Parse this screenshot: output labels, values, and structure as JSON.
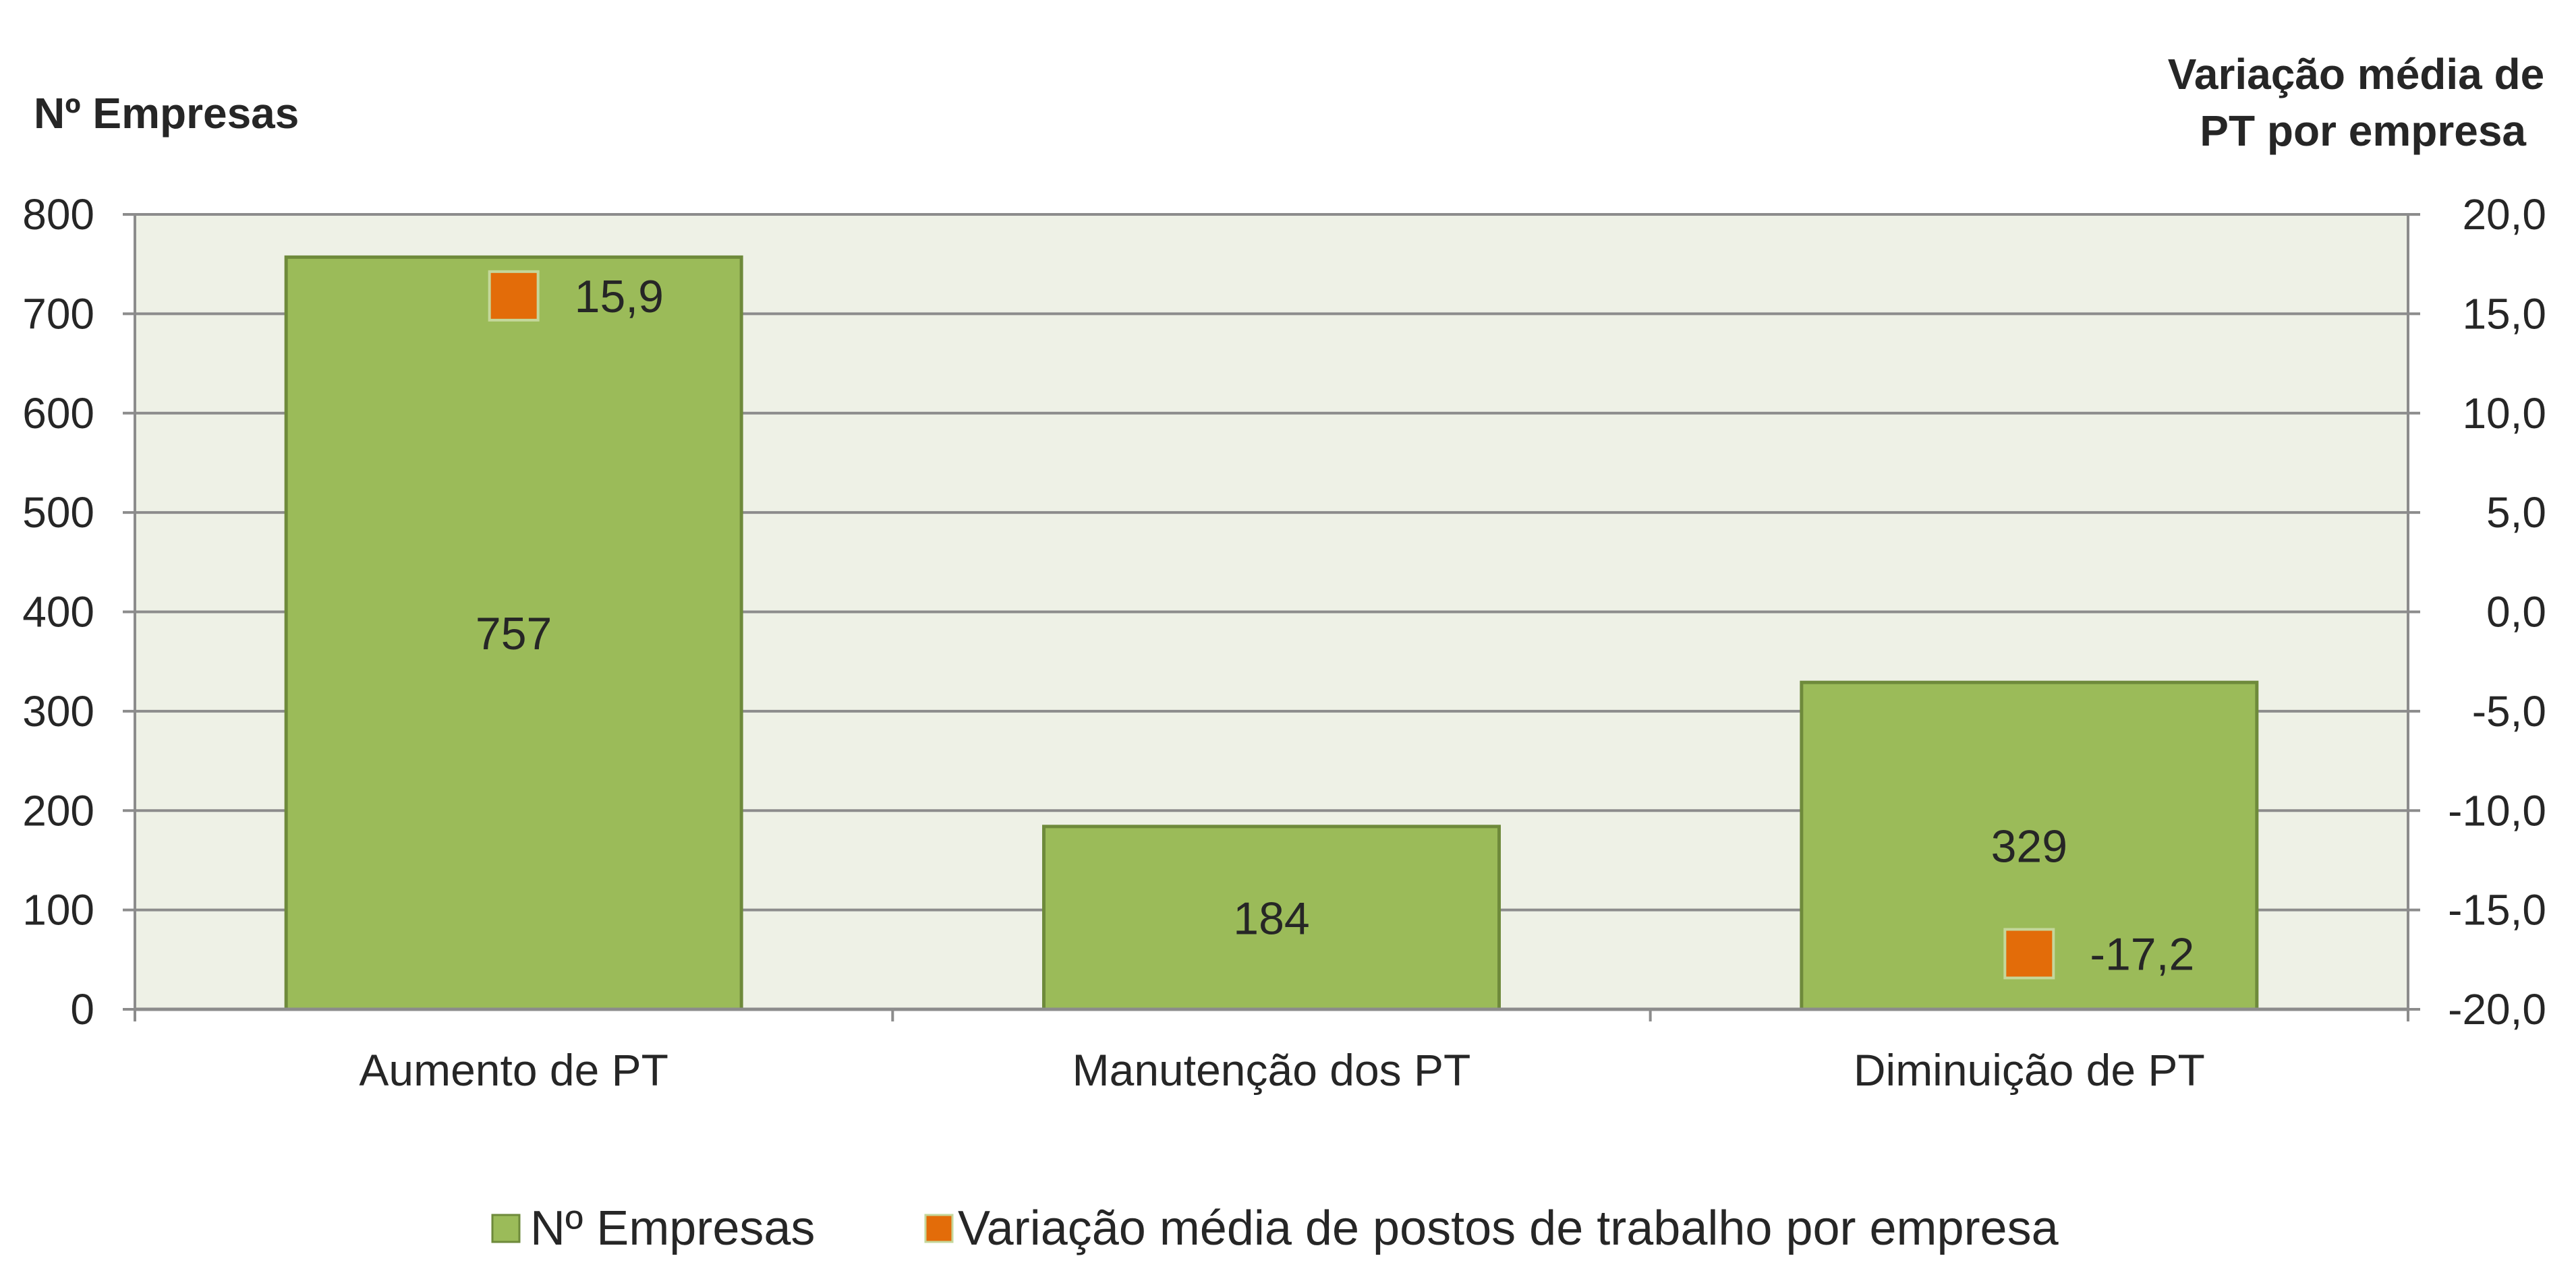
{
  "chart_data": {
    "type": "bar",
    "categories": [
      "Aumento de PT",
      "Manutenção dos PT",
      "Diminuição de PT"
    ],
    "series": [
      {
        "name": "Nº Empresas",
        "type": "bar",
        "axis": "left",
        "values": [
          757,
          184,
          329
        ],
        "color": "#9bbb59"
      },
      {
        "name": "Variação média de postos de trabalho por empresa",
        "type": "scatter",
        "axis": "right",
        "values": [
          15.9,
          null,
          -17.2
        ],
        "labels": [
          "15,9",
          "",
          "-17,2"
        ],
        "color": "#e36c09"
      }
    ],
    "bar_labels": [
      "757",
      "184",
      "329"
    ],
    "y_left": {
      "title": "Nº Empresas",
      "ylim": [
        0,
        800
      ],
      "ticks": [
        "0",
        "100",
        "200",
        "300",
        "400",
        "500",
        "600",
        "700",
        "800"
      ]
    },
    "y_right": {
      "title_lines": [
        "Variação média de",
        "PT por empresa"
      ],
      "ylim": [
        -20,
        20
      ],
      "ticks": [
        "-20,0",
        "-15,0",
        "-10,0",
        "-5,0",
        "0,0",
        "5,0",
        "10,0",
        "15,0",
        "20,0"
      ]
    },
    "grid": true,
    "legend_position": "bottom",
    "colors": {
      "plot_background": "#eef1e6",
      "gridline": "#8c8c8c",
      "bar_fill": "#9bbb59",
      "bar_border": "#6e8a3b",
      "marker_fill": "#e36c09",
      "marker_border": "#c4d79b"
    }
  }
}
